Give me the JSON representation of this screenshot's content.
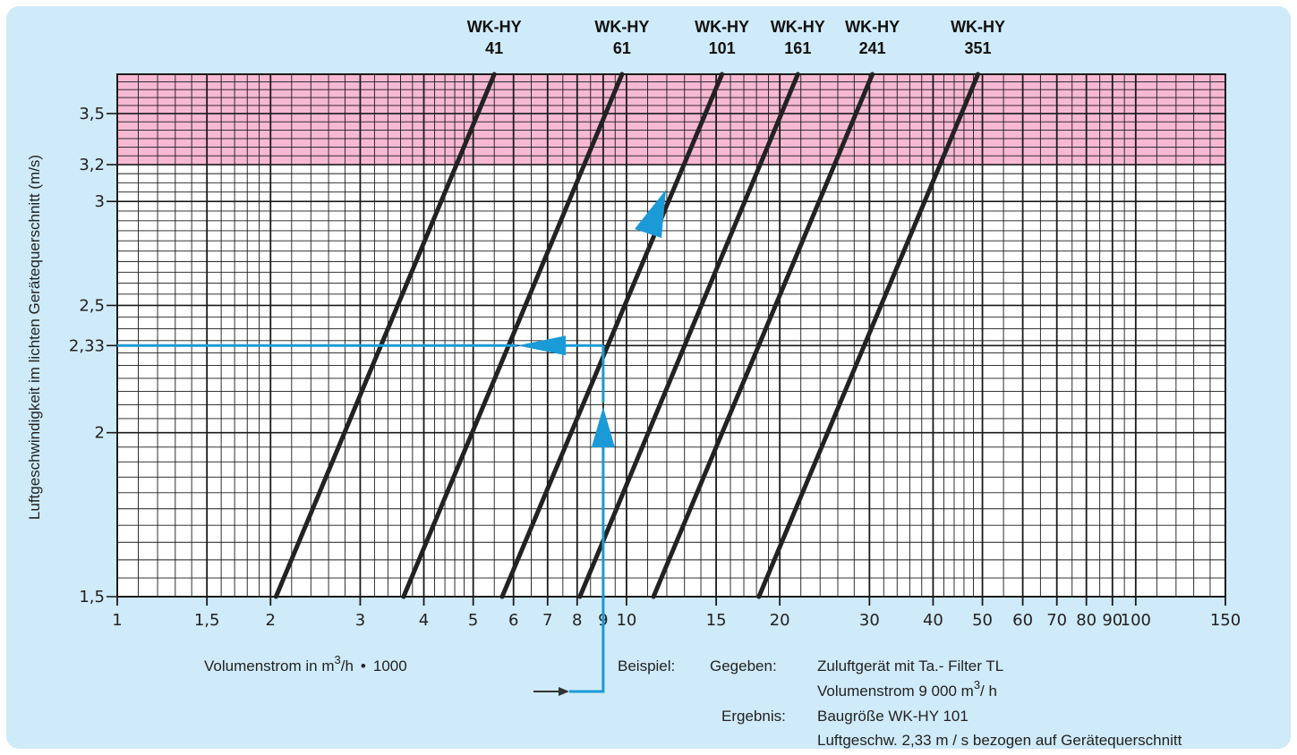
{
  "colors": {
    "panel_background": "#cfeaf8",
    "limit_zone": "#f7b8d2",
    "grid": "#1a1a1a",
    "series_line": "#222222",
    "example_path": "#1a9ad6"
  },
  "chart_data": {
    "type": "line",
    "x_scale": "log",
    "y_scale": "log",
    "xlim": [
      1,
      150
    ],
    "ylim": [
      1.5,
      3.75
    ],
    "xlabel": {
      "prefix": "Volumenstrom in m",
      "sup": "3",
      "suffix": "/h",
      "bullet": "•",
      "factor": "1000"
    },
    "ylabel": "Luftgeschwindigkeit im lichten Gerätequerschnitt (m/s)",
    "x_ticks": [
      {
        "value": 1,
        "label": "1"
      },
      {
        "value": 1.5,
        "label": "1,5"
      },
      {
        "value": 2,
        "label": "2"
      },
      {
        "value": 3,
        "label": "3"
      },
      {
        "value": 4,
        "label": "4"
      },
      {
        "value": 5,
        "label": "5"
      },
      {
        "value": 6,
        "label": "6"
      },
      {
        "value": 7,
        "label": "7"
      },
      {
        "value": 8,
        "label": "8"
      },
      {
        "value": 9,
        "label": "9"
      },
      {
        "value": 10,
        "label": "10"
      },
      {
        "value": 15,
        "label": "15"
      },
      {
        "value": 20,
        "label": "20"
      },
      {
        "value": 30,
        "label": "30"
      },
      {
        "value": 40,
        "label": "40"
      },
      {
        "value": 50,
        "label": "50"
      },
      {
        "value": 60,
        "label": "60"
      },
      {
        "value": 70,
        "label": "70"
      },
      {
        "value": 80,
        "label": "80"
      },
      {
        "value": 90,
        "label": "90"
      },
      {
        "value": 100,
        "label": "100"
      },
      {
        "value": 150,
        "label": "150"
      }
    ],
    "y_ticks": [
      {
        "value": 1.5,
        "label": "1,5"
      },
      {
        "value": 2,
        "label": "2"
      },
      {
        "value": 2.33,
        "label": "2,33"
      },
      {
        "value": 2.5,
        "label": "2,5"
      },
      {
        "value": 3,
        "label": "3"
      },
      {
        "value": 3.2,
        "label": "3,2"
      },
      {
        "value": 3.5,
        "label": "3,5"
      }
    ],
    "limit_zone": {
      "y_from": 3.2,
      "y_to": 3.75
    },
    "series": [
      {
        "name_line1": "WK-HY",
        "name_line2": "41",
        "x": [
          2.05,
          5.5
        ],
        "y": [
          1.5,
          3.75
        ]
      },
      {
        "name_line1": "WK-HY",
        "name_line2": "61",
        "x": [
          3.65,
          9.8
        ],
        "y": [
          1.5,
          3.75
        ]
      },
      {
        "name_line1": "WK-HY",
        "name_line2": "101",
        "x": [
          5.7,
          15.4
        ],
        "y": [
          1.5,
          3.75
        ]
      },
      {
        "name_line1": "WK-HY",
        "name_line2": "161",
        "x": [
          8.1,
          21.7
        ],
        "y": [
          1.5,
          3.75
        ]
      },
      {
        "name_line1": "WK-HY",
        "name_line2": "241",
        "x": [
          11.3,
          30.4
        ],
        "y": [
          1.5,
          3.75
        ]
      },
      {
        "name_line1": "WK-HY",
        "name_line2": "351",
        "x": [
          18.2,
          49.0
        ],
        "y": [
          1.5,
          3.75
        ]
      }
    ],
    "example": {
      "flow_x": 9,
      "velocity_y": 2.33,
      "result_series": "WK-HY 101",
      "label": "Beispiel:",
      "given_label": "Gegeben:",
      "given_line1": "Zuluftgerät mit Ta.- Filter TL",
      "given_line2_prefix": "Volumenstrom 9 000 m",
      "given_line2_sup": "3",
      "given_line2_suffix": "/ h",
      "result_label": "Ergebnis:",
      "result_line1": "Baugröße WK-HY 101",
      "result_line2": "Luftgeschw. 2,33 m / s bezogen auf Gerätequerschnitt"
    }
  }
}
